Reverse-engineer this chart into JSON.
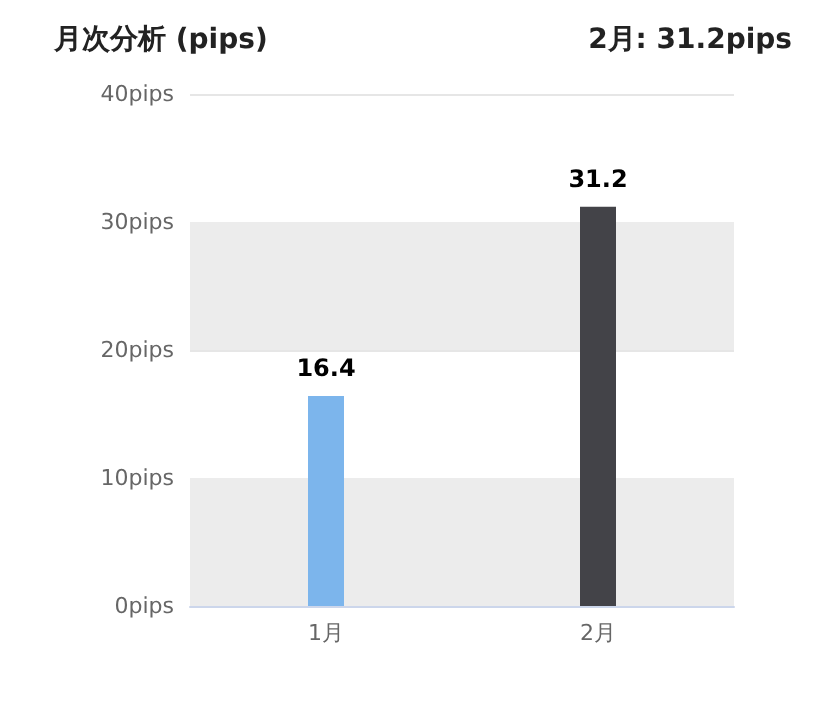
{
  "chart_data": {
    "type": "bar",
    "title": "月次分析 (pips)",
    "subtitle": "2月: 31.2pips",
    "categories": [
      "1月",
      "2月"
    ],
    "values": [
      16.4,
      31.2
    ],
    "colors": [
      "#7cb5ec",
      "#434348"
    ],
    "ylim": [
      0,
      40
    ],
    "yticks": [
      {
        "value": 0,
        "label": "0pips"
      },
      {
        "value": 10,
        "label": "10pips"
      },
      {
        "value": 20,
        "label": "20pips"
      },
      {
        "value": 30,
        "label": "30pips"
      },
      {
        "value": 40,
        "label": "40pips"
      }
    ],
    "bands": [
      {
        "axis": "y",
        "from": 0,
        "to": 10,
        "color": "#ececec"
      },
      {
        "axis": "y",
        "from": 20,
        "to": 30,
        "color": "#ececec"
      }
    ],
    "grid": true,
    "data_labels": true
  }
}
